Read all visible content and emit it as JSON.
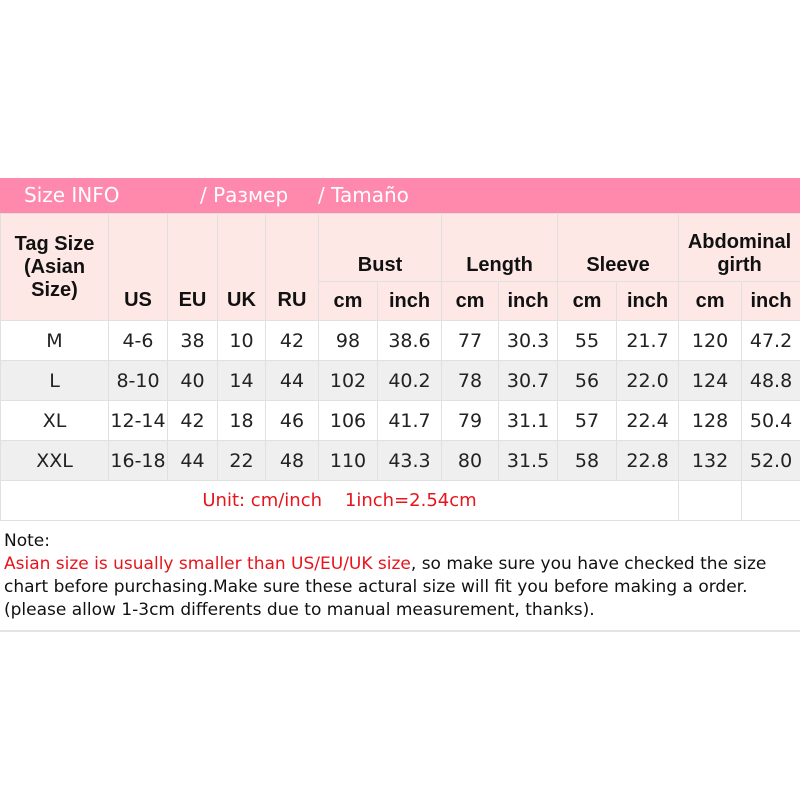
{
  "banner": {
    "title": "Size INFO",
    "ru": "/  Размер",
    "es": "/  Tamaño"
  },
  "header": {
    "tag": "Tag Size (Asian Size)",
    "us": "US",
    "eu": "EU",
    "uk": "UK",
    "ru": "RU",
    "bust": "Bust",
    "length": "Length",
    "sleeve": "Sleeve",
    "abdominal": "Abdominal girth",
    "cm": "cm",
    "inch": "inch"
  },
  "rows": [
    [
      "M",
      "4-6",
      "38",
      "10",
      "42",
      "98",
      "38.6",
      "77",
      "30.3",
      "55",
      "21.7",
      "120",
      "47.2"
    ],
    [
      "L",
      "8-10",
      "40",
      "14",
      "44",
      "102",
      "40.2",
      "78",
      "30.7",
      "56",
      "22.0",
      "124",
      "48.8"
    ],
    [
      "XL",
      "12-14",
      "42",
      "18",
      "46",
      "106",
      "41.7",
      "79",
      "31.1",
      "57",
      "22.4",
      "128",
      "50.4"
    ],
    [
      "XXL",
      "16-18",
      "44",
      "22",
      "48",
      "110",
      "43.3",
      "80",
      "31.5",
      "58",
      "22.8",
      "132",
      "52.0"
    ]
  ],
  "unit": "Unit: cm/inch    1inch=2.54cm",
  "note": {
    "label": "Note:",
    "red": "Asian size is usually smaller than US/EU/UK size",
    "rest": ", so make sure you have checked the size chart before purchasing.Make sure these actural size will fit you before making a order.(please allow 1-3cm differents due to manual measurement, thanks)."
  },
  "colors": {
    "banner": "#ff88ad",
    "header_bg": "#fde8e6",
    "red": "#e8141c"
  }
}
